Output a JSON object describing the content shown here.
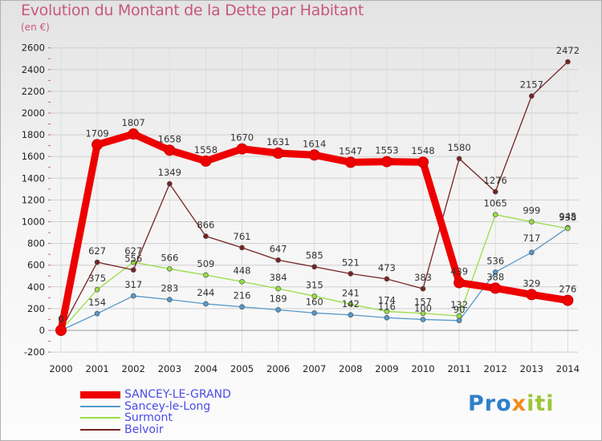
{
  "title": "Evolution du Montant de la Dette par Habitant",
  "subtitle": "(en €)",
  "logo_text": "Proxiti",
  "chart_data": {
    "type": "line",
    "title": "Evolution du Montant de la Dette par Habitant",
    "ylabel": "(en €)",
    "xlabel": "",
    "ylim": [
      -200,
      2600
    ],
    "yticks": [
      -200,
      0,
      200,
      400,
      600,
      800,
      1000,
      1200,
      1400,
      1600,
      1800,
      2000,
      2200,
      2400,
      2600
    ],
    "categories": [
      "2000",
      "2001",
      "2002",
      "2003",
      "2004",
      "2005",
      "2006",
      "2007",
      "2008",
      "2009",
      "2010",
      "2011",
      "2012",
      "2013",
      "2014"
    ],
    "series": [
      {
        "name": "SANCEY-LE-GRAND",
        "color": "#ee0000",
        "values": [
          0,
          1709,
          1807,
          1658,
          1558,
          1670,
          1631,
          1614,
          1547,
          1553,
          1548,
          439,
          388,
          329,
          276
        ]
      },
      {
        "name": "Sancey-le-Long",
        "color": "#5599cc",
        "values": [
          0,
          154,
          317,
          283,
          244,
          216,
          189,
          160,
          142,
          116,
          100,
          90,
          536,
          717,
          945
        ]
      },
      {
        "name": "Surmont",
        "color": "#99dd44",
        "values": [
          0,
          375,
          627,
          566,
          509,
          448,
          384,
          315,
          241,
          174,
          157,
          132,
          1065,
          999,
          938
        ]
      },
      {
        "name": "Belvoir",
        "color": "#772222",
        "values": [
          0,
          627,
          556,
          1349,
          866,
          761,
          647,
          585,
          521,
          473,
          383,
          1580,
          1276,
          2157,
          2472
        ]
      }
    ],
    "grid": true,
    "legend": "bottom-left"
  }
}
